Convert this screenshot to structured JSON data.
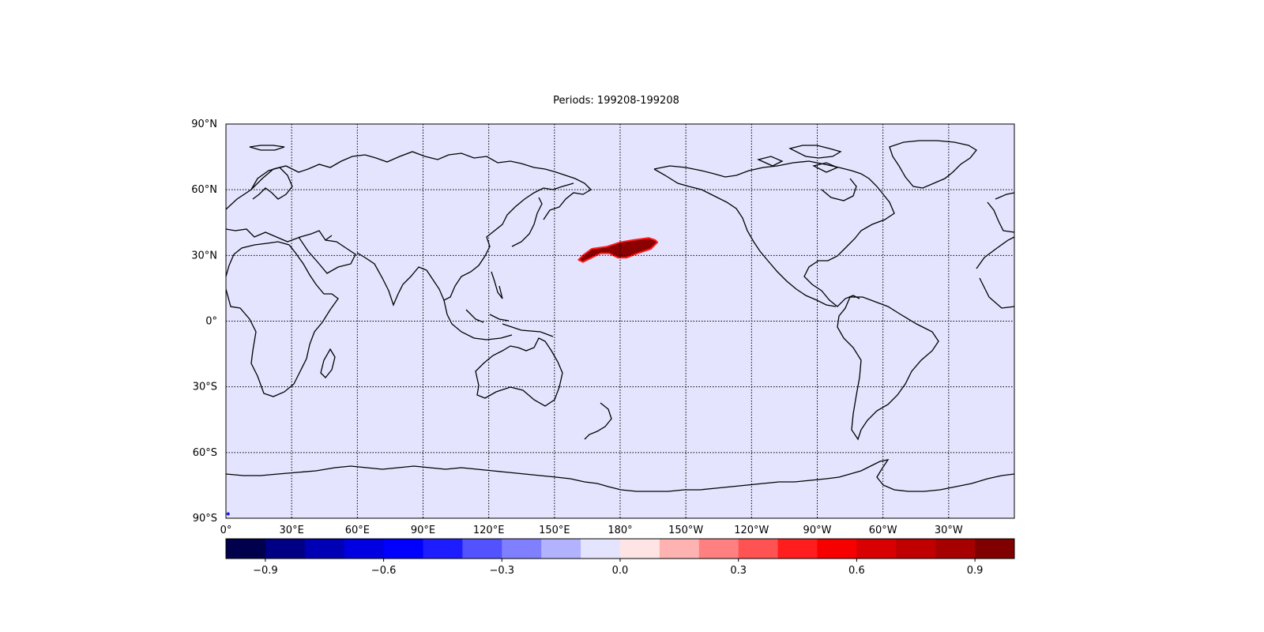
{
  "title": "Periods: 199208-199208",
  "map": {
    "projection": "plate-carree",
    "central_longitude": 180,
    "background_color": "#e4e4fe",
    "grid": "dotted",
    "lat_ticks": [
      "90°N",
      "60°N",
      "30°N",
      "0°",
      "30°S",
      "60°S",
      "90°S"
    ],
    "lon_ticks": [
      "0°",
      "30°E",
      "60°E",
      "90°E",
      "120°E",
      "150°E",
      "180°",
      "150°W",
      "120°W",
      "90°W",
      "60°W",
      "30°W"
    ],
    "anomaly_region": {
      "description_value": "positive anomaly patch",
      "color": "#8b0000",
      "outline_color": "#ff1a1a",
      "points_lon_lat": [
        [
          161,
          28
        ],
        [
          163,
          30
        ],
        [
          167,
          33
        ],
        [
          174,
          34
        ],
        [
          180,
          36
        ],
        [
          186,
          37
        ],
        [
          193,
          38
        ],
        [
          196,
          37
        ],
        [
          197,
          36
        ],
        [
          194,
          33
        ],
        [
          188,
          31
        ],
        [
          183,
          29
        ],
        [
          179,
          29
        ],
        [
          175,
          31
        ],
        [
          171,
          31
        ],
        [
          167,
          29
        ],
        [
          163,
          27
        ]
      ]
    },
    "small_marker": {
      "lon": 1,
      "lat": -88,
      "color": "#1a1aff"
    }
  },
  "colorbar": {
    "colors": [
      "#00004c",
      "#000084",
      "#0000b4",
      "#0000e0",
      "#0000ff",
      "#1d1dff",
      "#5252ff",
      "#8080ff",
      "#b2b2ff",
      "#e4e4fe",
      "#fee4e4",
      "#ffb2b2",
      "#ff8080",
      "#ff5252",
      "#ff1d1d",
      "#f70000",
      "#d80000",
      "#c00000",
      "#a60000",
      "#800000"
    ],
    "tick_labels": [
      "−0.9",
      "−0.6",
      "−0.3",
      "0.0",
      "0.3",
      "0.6",
      "0.9"
    ],
    "tick_values": [
      -0.9,
      -0.6,
      -0.3,
      0.0,
      0.3,
      0.6,
      0.9
    ],
    "vmin": -1.0,
    "vmax": 1.0
  }
}
